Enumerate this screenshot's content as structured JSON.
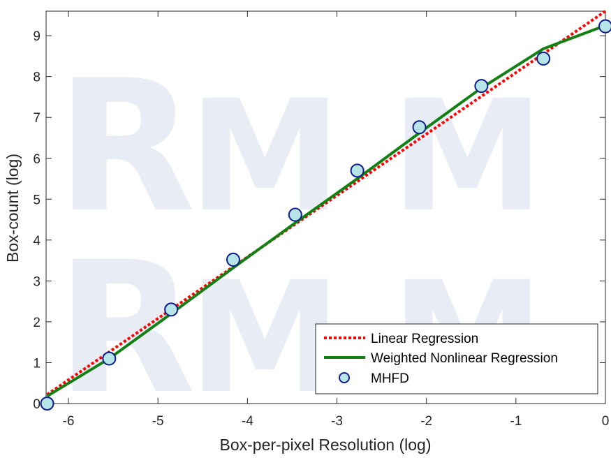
{
  "chart_data": {
    "type": "scatter",
    "title": "",
    "xlabel": "Box-per-pixel Resolution (log)",
    "ylabel": "Box-count (log)",
    "xlim": [
      -6.25,
      0
    ],
    "ylim": [
      0,
      9.6
    ],
    "x_ticks": [
      -6,
      -5,
      -4,
      -3,
      -2,
      -1,
      0
    ],
    "y_ticks": [
      0,
      1,
      2,
      3,
      4,
      5,
      6,
      7,
      8,
      9
    ],
    "grid": false,
    "legend_position": "bottom-right",
    "series": [
      {
        "name": "Linear Regression",
        "kind": "line",
        "style": "dotted",
        "color": "#ff0000",
        "x": [
          -6.238,
          0
        ],
        "y": [
          0.22,
          9.6
        ]
      },
      {
        "name": "Weighted Nonlinear Regression",
        "kind": "line",
        "style": "solid",
        "color": "#138013",
        "x": [
          -6.238,
          -5.545,
          -4.852,
          -4.159,
          -3.466,
          -2.773,
          -2.079,
          -1.386,
          -0.693,
          0
        ],
        "y": [
          0.18,
          1.1,
          2.2,
          3.32,
          4.42,
          5.5,
          6.62,
          7.72,
          8.68,
          9.25
        ]
      },
      {
        "name": "MHFD",
        "kind": "scatter",
        "marker_face": "#b7e4e6",
        "marker_edge": "#0d1d8c",
        "x": [
          -6.238,
          -5.545,
          -4.852,
          -4.159,
          -3.466,
          -2.773,
          -2.079,
          -1.386,
          -0.693,
          0
        ],
        "y": [
          0.0,
          1.1,
          2.3,
          3.52,
          4.62,
          5.7,
          6.76,
          7.77,
          8.44,
          9.23
        ]
      }
    ]
  }
}
